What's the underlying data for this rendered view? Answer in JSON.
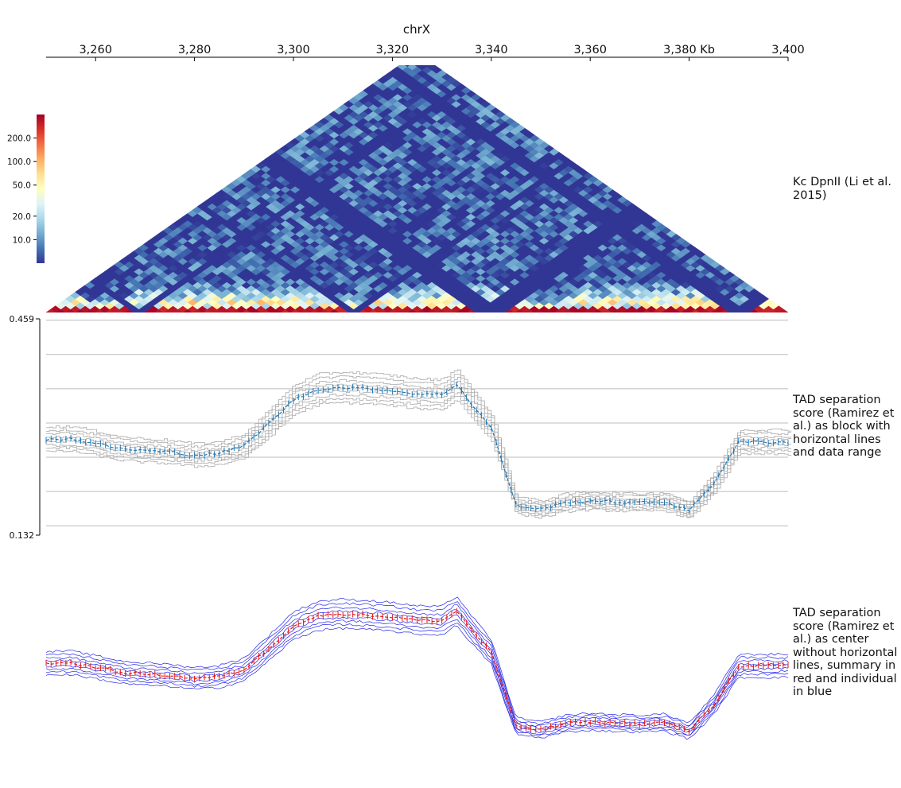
{
  "chart_data": [
    {
      "type": "axis",
      "title": "chrX",
      "xlim": [
        3250,
        3400
      ],
      "ticks": [
        {
          "value": 3260,
          "label": "3,260"
        },
        {
          "value": 3280,
          "label": "3,280"
        },
        {
          "value": 3300,
          "label": "3,300"
        },
        {
          "value": 3320,
          "label": "3,320"
        },
        {
          "value": 3340,
          "label": "3,340"
        },
        {
          "value": 3360,
          "label": "3,360"
        },
        {
          "value": 3380,
          "label": "3,380 Kb"
        },
        {
          "value": 3400,
          "label": "3,400"
        }
      ]
    },
    {
      "type": "heatmap",
      "title": "Kc DpnII (Li et al. 2015)",
      "colormap": [
        "#313695",
        "#4575b4",
        "#74add1",
        "#abd9e9",
        "#e0f3f8",
        "#ffffbf",
        "#fee090",
        "#fdae61",
        "#f46d43",
        "#d73027",
        "#a50026"
      ],
      "colorbar_ticks": [
        "200.0",
        "100.0",
        "50.0",
        "20.0",
        "10.0"
      ],
      "colorbar_values": [
        200,
        100,
        50,
        20,
        10
      ],
      "scale": "log",
      "tad_boundaries_kb": [
        3262,
        3312,
        3350,
        3390
      ],
      "masked_color": "#313695"
    },
    {
      "type": "line",
      "title": "TAD separation score (Ramirez et al.) as block with horizontal lines and data range",
      "ylim": [
        0.132,
        0.459
      ],
      "ytick_labels": [
        "0.459",
        "0.132"
      ],
      "summary_color": "#1f77b4",
      "individual_color": "#a9a9a9",
      "hlines": [
        0.457,
        0.405,
        0.353,
        0.301,
        0.249,
        0.197,
        0.145
      ],
      "display": "block",
      "x": [
        3250,
        3255,
        3260,
        3265,
        3270,
        3275,
        3280,
        3285,
        3290,
        3295,
        3300,
        3305,
        3310,
        3315,
        3320,
        3325,
        3330,
        3333,
        3336,
        3340,
        3345,
        3350,
        3355,
        3360,
        3365,
        3370,
        3375,
        3380,
        3385,
        3390,
        3395,
        3400
      ],
      "series": [
        {
          "values": [
            0.276,
            0.277,
            0.27,
            0.262,
            0.259,
            0.257,
            0.252,
            0.255,
            0.266,
            0.3,
            0.336,
            0.352,
            0.355,
            0.353,
            0.35,
            0.345,
            0.344,
            0.36,
            0.33,
            0.294,
            0.176,
            0.17,
            0.18,
            0.183,
            0.181,
            0.18,
            0.182,
            0.168,
            0.21,
            0.272,
            0.272,
            0.272
          ]
        }
      ]
    },
    {
      "type": "line",
      "title": "TAD separation score (Ramirez et al.) as center without horizontal lines, summary in red and individual in blue",
      "ylim": [
        0.132,
        0.459
      ],
      "summary_color": "#e31a1c",
      "individual_color": "#2424e8",
      "display": "center",
      "x": [
        3250,
        3255,
        3260,
        3265,
        3270,
        3275,
        3280,
        3285,
        3290,
        3295,
        3300,
        3305,
        3310,
        3315,
        3320,
        3325,
        3330,
        3333,
        3336,
        3340,
        3345,
        3350,
        3355,
        3360,
        3365,
        3370,
        3375,
        3380,
        3385,
        3390,
        3395,
        3400
      ],
      "series": [
        {
          "values": [
            0.276,
            0.277,
            0.27,
            0.262,
            0.259,
            0.257,
            0.252,
            0.255,
            0.266,
            0.3,
            0.336,
            0.352,
            0.355,
            0.353,
            0.35,
            0.345,
            0.344,
            0.36,
            0.33,
            0.294,
            0.176,
            0.17,
            0.18,
            0.183,
            0.181,
            0.18,
            0.182,
            0.168,
            0.21,
            0.272,
            0.272,
            0.272
          ]
        }
      ]
    }
  ]
}
